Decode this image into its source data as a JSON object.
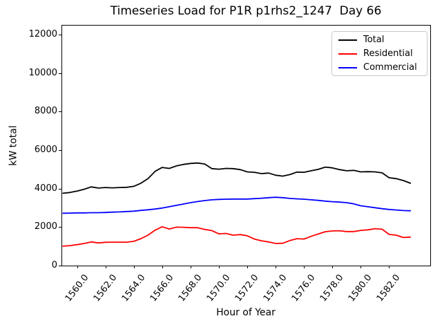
{
  "chart_data": {
    "type": "line",
    "title": "Timeseries Load for P1R p1rhs2_1247  Day 66",
    "xlabel": "Hour of Year",
    "ylabel": "kW total",
    "xlim": [
      1558.9,
      1584.9
    ],
    "ylim": [
      0,
      12510
    ],
    "grid": false,
    "legend_position": "upper right",
    "xticks": [
      1560.0,
      1562.0,
      1564.0,
      1566.0,
      1568.0,
      1570.0,
      1572.0,
      1574.0,
      1576.0,
      1578.0,
      1580.0,
      1582.0
    ],
    "xtick_labels": [
      "1560.0",
      "1562.0",
      "1564.0",
      "1566.0",
      "1568.0",
      "1570.0",
      "1572.0",
      "1574.0",
      "1576.0",
      "1578.0",
      "1580.0",
      "1582.0"
    ],
    "yticks": [
      0,
      2000,
      4000,
      6000,
      8000,
      10000,
      12000
    ],
    "ytick_labels": [
      "0",
      "2000",
      "4000",
      "6000",
      "8000",
      "10000",
      "12000"
    ],
    "x": [
      1559.0,
      1559.5,
      1560.0,
      1560.5,
      1561.0,
      1561.5,
      1562.0,
      1562.5,
      1563.0,
      1563.5,
      1564.0,
      1564.5,
      1565.0,
      1565.5,
      1566.0,
      1566.5,
      1567.0,
      1567.5,
      1568.0,
      1568.5,
      1569.0,
      1569.5,
      1570.0,
      1570.5,
      1571.0,
      1571.5,
      1572.0,
      1572.5,
      1573.0,
      1573.5,
      1574.0,
      1574.5,
      1575.0,
      1575.5,
      1576.0,
      1576.5,
      1577.0,
      1577.5,
      1578.0,
      1578.5,
      1579.0,
      1579.5,
      1580.0,
      1580.5,
      1581.0,
      1581.5,
      1582.0,
      1582.5,
      1583.0,
      1583.5
    ],
    "series": [
      {
        "name": "Total",
        "color": "#000000",
        "values": [
          3760,
          3800,
          3870,
          3970,
          4090,
          4030,
          4060,
          4040,
          4060,
          4070,
          4120,
          4280,
          4520,
          4900,
          5100,
          5050,
          5180,
          5260,
          5310,
          5330,
          5280,
          5040,
          5010,
          5050,
          5040,
          4990,
          4870,
          4850,
          4780,
          4810,
          4700,
          4650,
          4730,
          4860,
          4850,
          4930,
          5000,
          5120,
          5080,
          4990,
          4930,
          4950,
          4870,
          4880,
          4870,
          4820,
          4570,
          4520,
          4420,
          4280
        ]
      },
      {
        "name": "Residential",
        "color": "#ff0000",
        "values": [
          1010,
          1040,
          1090,
          1150,
          1230,
          1180,
          1210,
          1220,
          1220,
          1220,
          1260,
          1400,
          1580,
          1840,
          2020,
          1900,
          2000,
          1990,
          1970,
          1970,
          1880,
          1820,
          1650,
          1670,
          1580,
          1610,
          1550,
          1380,
          1290,
          1230,
          1150,
          1160,
          1300,
          1400,
          1380,
          1520,
          1640,
          1760,
          1800,
          1810,
          1770,
          1770,
          1830,
          1860,
          1920,
          1890,
          1620,
          1580,
          1460,
          1480
        ]
      },
      {
        "name": "Commercial",
        "color": "#0000ff",
        "values": [
          2720,
          2730,
          2740,
          2740,
          2750,
          2750,
          2760,
          2780,
          2790,
          2810,
          2830,
          2870,
          2900,
          2940,
          2990,
          3060,
          3130,
          3200,
          3270,
          3330,
          3380,
          3420,
          3440,
          3450,
          3460,
          3460,
          3460,
          3480,
          3500,
          3530,
          3550,
          3530,
          3490,
          3470,
          3450,
          3420,
          3390,
          3350,
          3320,
          3300,
          3270,
          3210,
          3110,
          3060,
          3010,
          2960,
          2920,
          2890,
          2860,
          2850
        ]
      }
    ]
  }
}
